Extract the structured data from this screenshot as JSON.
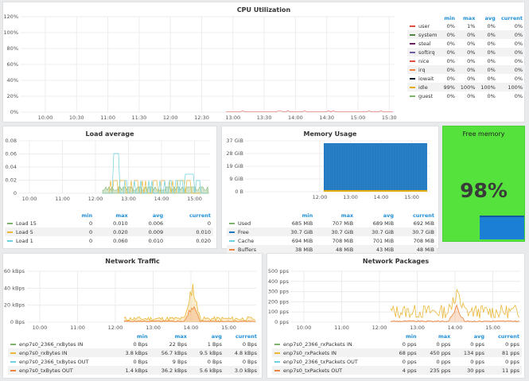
{
  "cpu": {
    "title": "CPU Utilization",
    "y_ticks": [
      "120%",
      "100%",
      "80%",
      "60%",
      "40%",
      "20%",
      "0%"
    ],
    "x_ticks": [
      "10:00",
      "10:30",
      "11:00",
      "11:30",
      "12:00",
      "12:30",
      "13:00",
      "13:30",
      "14:00",
      "14:30",
      "15:00",
      "15:30"
    ],
    "legend_headers": [
      "min",
      "max",
      "avg",
      "current"
    ],
    "legend": [
      {
        "name": "user",
        "color": "#e24d42",
        "min": "0%",
        "max": "1%",
        "avg": "0%",
        "current": "0%"
      },
      {
        "name": "system",
        "color": "#508642",
        "min": "0%",
        "max": "0%",
        "avg": "0%",
        "current": "0%"
      },
      {
        "name": "steal",
        "color": "#6d1f62",
        "min": "0%",
        "max": "0%",
        "avg": "0%",
        "current": "0%"
      },
      {
        "name": "softirq",
        "color": "#705da0",
        "min": "0%",
        "max": "0%",
        "avg": "0%",
        "current": "0%"
      },
      {
        "name": "nice",
        "color": "#e24d42",
        "min": "0%",
        "max": "0%",
        "avg": "0%",
        "current": "0%"
      },
      {
        "name": "irq",
        "color": "#ef843c",
        "min": "0%",
        "max": "0%",
        "avg": "0%",
        "current": "0%"
      },
      {
        "name": "iowait",
        "color": "#0a1a2e",
        "min": "0%",
        "max": "0%",
        "avg": "0%",
        "current": "0%"
      },
      {
        "name": "idle",
        "color": "#e5ac0e",
        "min": "99%",
        "max": "100%",
        "avg": "100%",
        "current": "100%"
      },
      {
        "name": "guest",
        "color": "#7eb26d",
        "min": "0%",
        "max": "0%",
        "avg": "0%",
        "current": "0%"
      }
    ]
  },
  "load": {
    "title": "Load average",
    "y_ticks": [
      "0.08",
      "0.06",
      "0.04",
      "0.02",
      "0"
    ],
    "x_ticks": [
      "10:00",
      "11:00",
      "12:00",
      "13:00",
      "14:00",
      "15:00"
    ],
    "legend_headers": [
      "min",
      "max",
      "avg",
      "current"
    ],
    "legend": [
      {
        "name": "Load 15",
        "color": "#7eb26d",
        "min": "0",
        "max": "0.010",
        "avg": "0.006",
        "current": "0"
      },
      {
        "name": "Load 5",
        "color": "#eab839",
        "min": "0",
        "max": "0.020",
        "avg": "0.009",
        "current": "0.010"
      },
      {
        "name": "Load 1",
        "color": "#6ed0e0",
        "min": "0",
        "max": "0.060",
        "avg": "0.010",
        "current": "0.020"
      }
    ]
  },
  "memory": {
    "title": "Memory Usage",
    "y_ticks": [
      "37 GiB",
      "28 GiB",
      "19 GiB",
      "9 GiB",
      "0 B"
    ],
    "x_ticks": [
      "12:00",
      "13:00",
      "14:00",
      "15:00"
    ],
    "legend_headers": [
      "min",
      "max",
      "avg",
      "current"
    ],
    "legend": [
      {
        "name": "Used",
        "color": "#7eb26d",
        "min": "685 MiB",
        "max": "707 MiB",
        "avg": "689 MiB",
        "current": "692 MiB"
      },
      {
        "name": "Free",
        "color": "#1f78c1",
        "min": "30.7 GiB",
        "max": "30.7 GiB",
        "avg": "30.7 GiB",
        "current": "30.7 GiB"
      },
      {
        "name": "Cache",
        "color": "#6ed0e0",
        "min": "694 MiB",
        "max": "708 MiB",
        "avg": "701 MiB",
        "current": "708 MiB"
      },
      {
        "name": "Buffers",
        "color": "#ef843c",
        "min": "38 MiB",
        "max": "48 MiB",
        "avg": "43 MiB",
        "current": "48 MiB"
      }
    ]
  },
  "free_memory": {
    "title": "Free memory",
    "value": "98%",
    "bg_color": "#55e23c"
  },
  "net_traffic": {
    "title": "Network Traffic",
    "y_ticks": [
      "60 kBps",
      "40 kBps",
      "20 kBps",
      "0 Bps"
    ],
    "x_ticks": [
      "10:00",
      "11:00",
      "12:00",
      "13:00",
      "14:00",
      "15:00"
    ],
    "legend_headers": [
      "min",
      "max",
      "avg",
      "current"
    ],
    "legend": [
      {
        "name": "enp7s0_2366_rxBytes IN",
        "color": "#7eb26d",
        "min": "0 Bps",
        "max": "22 Bps",
        "avg": "1 Bps",
        "current": "0 Bps"
      },
      {
        "name": "enp7s0_rxBytes IN",
        "color": "#eab839",
        "min": "3.8 kBps",
        "max": "56.7 kBps",
        "avg": "9.5 kBps",
        "current": "4.8 kBps"
      },
      {
        "name": "enp7s0_2366_txBytes OUT",
        "color": "#6ed0e0",
        "min": "0 Bps",
        "max": "9 Bps",
        "avg": "0 Bps",
        "current": "0 Bps"
      },
      {
        "name": "enp7s0_txBytes OUT",
        "color": "#ef843c",
        "min": "1.4 kBps",
        "max": "36.2 kBps",
        "avg": "5.6 kBps",
        "current": "3.0 kBps"
      }
    ]
  },
  "net_packages": {
    "title": "Network Packages",
    "y_ticks": [
      "500 pps",
      "400 pps",
      "300 pps",
      "200 pps",
      "100 pps",
      "0 pps"
    ],
    "x_ticks": [
      "10:00",
      "11:00",
      "12:00",
      "13:00",
      "14:00",
      "15:00"
    ],
    "legend_headers": [
      "min",
      "max",
      "avg",
      "current"
    ],
    "legend": [
      {
        "name": "enp7s0_2366_rxPackets IN",
        "color": "#7eb26d",
        "min": "0 pps",
        "max": "0 pps",
        "avg": "0 pps",
        "current": "0 pps"
      },
      {
        "name": "enp7s0_rxPackets IN",
        "color": "#eab839",
        "min": "68 pps",
        "max": "450 pps",
        "avg": "134 pps",
        "current": "81 pps"
      },
      {
        "name": "enp7s0_2366_txPackets OUT",
        "color": "#6ed0e0",
        "min": "0 pps",
        "max": "0 pps",
        "avg": "0 pps",
        "current": "0 pps"
      },
      {
        "name": "enp7s0_txPackets OUT",
        "color": "#ef843c",
        "min": "4 pps",
        "max": "235 pps",
        "avg": "30 pps",
        "current": "11 pps"
      }
    ]
  }
}
